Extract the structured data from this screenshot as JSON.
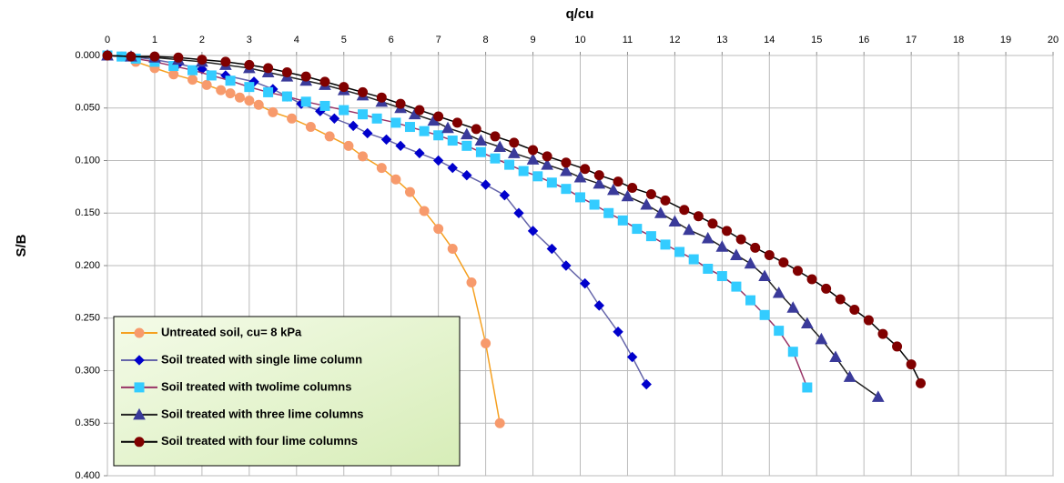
{
  "chart_data": {
    "type": "line",
    "x_label": "q/cu",
    "y_label": "S/B",
    "xlim": [
      0,
      20
    ],
    "xticks": [
      0,
      1,
      2,
      3,
      4,
      5,
      6,
      7,
      8,
      9,
      10,
      11,
      12,
      13,
      14,
      15,
      16,
      17,
      18,
      19,
      20
    ],
    "ylim": [
      0,
      0.4
    ],
    "y_inverted": true,
    "yticks": [
      {
        "value": 0,
        "label": "0.000"
      },
      {
        "value": 0.05,
        "label": "0.050"
      },
      {
        "value": 0.1,
        "label": "0.100"
      },
      {
        "value": 0.15,
        "label": "0.150"
      },
      {
        "value": 0.2,
        "label": "0.200"
      },
      {
        "value": 0.25,
        "label": "0.250"
      },
      {
        "value": 0.3,
        "label": "0.300"
      },
      {
        "value": 0.35,
        "label": "0.350"
      },
      {
        "value": 0.4,
        "label": "0.400"
      }
    ],
    "grid": true,
    "legend": "lower left",
    "series": [
      {
        "name": "Untreated soil, cu= 8 kPa",
        "color": "#f79a6c",
        "line_color": "#f5a020",
        "marker": "circle",
        "x": [
          0,
          0.3,
          0.6,
          1,
          1.4,
          1.8,
          2.1,
          2.4,
          2.6,
          2.8,
          3,
          3.2,
          3.5,
          3.9,
          4.3,
          4.7,
          5.1,
          5.4,
          5.8,
          6.1,
          6.4,
          6.7,
          7,
          7.3,
          7.7,
          8,
          8.3
        ],
        "values": [
          0,
          0.001,
          0.006,
          0.012,
          0.018,
          0.023,
          0.028,
          0.033,
          0.036,
          0.04,
          0.043,
          0.047,
          0.054,
          0.06,
          0.068,
          0.077,
          0.086,
          0.096,
          0.107,
          0.118,
          0.13,
          0.148,
          0.165,
          0.184,
          0.216,
          0.274,
          0.35
        ]
      },
      {
        "name": "Soil treated with single lime column",
        "color": "#0000cc",
        "line_color": "#6666aa",
        "marker": "diamond",
        "x": [
          0,
          0.5,
          1,
          1.5,
          2,
          2.5,
          3.1,
          3.5,
          3.8,
          4.1,
          4.5,
          4.8,
          5.2,
          5.5,
          5.9,
          6.2,
          6.6,
          7,
          7.3,
          7.6,
          8,
          8.4,
          8.7,
          9,
          9.4,
          9.7,
          10.1,
          10.4,
          10.8,
          11.1,
          11.4
        ],
        "values": [
          0,
          0.001,
          0.004,
          0.008,
          0.013,
          0.019,
          0.025,
          0.032,
          0.039,
          0.046,
          0.053,
          0.06,
          0.067,
          0.074,
          0.08,
          0.086,
          0.093,
          0.1,
          0.107,
          0.114,
          0.123,
          0.133,
          0.15,
          0.167,
          0.184,
          0.2,
          0.217,
          0.238,
          0.263,
          0.287,
          0.313
        ]
      },
      {
        "name": "Soil treated with twolime columns",
        "color": "#33ccff",
        "line_color": "#993366",
        "marker": "square",
        "x": [
          0,
          0.3,
          0.6,
          1,
          1.4,
          1.8,
          2.2,
          2.6,
          3,
          3.4,
          3.8,
          4.2,
          4.6,
          5,
          5.4,
          5.7,
          6.1,
          6.4,
          6.7,
          7,
          7.3,
          7.6,
          7.9,
          8.2,
          8.5,
          8.8,
          9.1,
          9.4,
          9.7,
          10,
          10.3,
          10.6,
          10.9,
          11.2,
          11.5,
          11.8,
          12.1,
          12.4,
          12.7,
          13,
          13.3,
          13.6,
          13.9,
          14.2,
          14.5,
          14.8
        ],
        "values": [
          0,
          0.001,
          0.003,
          0.006,
          0.01,
          0.014,
          0.019,
          0.024,
          0.03,
          0.035,
          0.039,
          0.044,
          0.048,
          0.052,
          0.056,
          0.06,
          0.064,
          0.068,
          0.072,
          0.076,
          0.081,
          0.086,
          0.092,
          0.098,
          0.104,
          0.11,
          0.115,
          0.121,
          0.127,
          0.135,
          0.142,
          0.15,
          0.157,
          0.165,
          0.172,
          0.18,
          0.187,
          0.194,
          0.203,
          0.21,
          0.22,
          0.233,
          0.247,
          0.262,
          0.282,
          0.316
        ]
      },
      {
        "name": "Soil treated with three lime columns",
        "color": "#3a3a9a",
        "line_color": "#222222",
        "marker": "triangle",
        "x": [
          0,
          0.5,
          1,
          1.5,
          2,
          2.5,
          3,
          3.4,
          3.8,
          4.2,
          4.6,
          5,
          5.4,
          5.8,
          6.2,
          6.5,
          6.9,
          7.2,
          7.6,
          7.9,
          8.3,
          8.6,
          9,
          9.3,
          9.7,
          10,
          10.4,
          10.7,
          11,
          11.4,
          11.7,
          12,
          12.3,
          12.7,
          13,
          13.3,
          13.6,
          13.9,
          14.2,
          14.5,
          14.8,
          15.1,
          15.4,
          15.7,
          16.3
        ],
        "values": [
          0,
          0.001,
          0.002,
          0.004,
          0.006,
          0.009,
          0.012,
          0.016,
          0.02,
          0.024,
          0.028,
          0.033,
          0.038,
          0.044,
          0.05,
          0.056,
          0.062,
          0.069,
          0.075,
          0.081,
          0.087,
          0.093,
          0.099,
          0.104,
          0.11,
          0.116,
          0.122,
          0.128,
          0.134,
          0.142,
          0.15,
          0.158,
          0.166,
          0.174,
          0.182,
          0.19,
          0.198,
          0.21,
          0.226,
          0.24,
          0.255,
          0.27,
          0.287,
          0.306,
          0.325
        ]
      },
      {
        "name": "Soil treated with four lime columns",
        "color": "#800000",
        "line_color": "#000000",
        "marker": "circle",
        "x": [
          0,
          0.5,
          1,
          1.5,
          2,
          2.5,
          3,
          3.4,
          3.8,
          4.2,
          4.6,
          5,
          5.4,
          5.8,
          6.2,
          6.6,
          7,
          7.4,
          7.8,
          8.2,
          8.6,
          9,
          9.3,
          9.7,
          10.1,
          10.4,
          10.8,
          11.1,
          11.5,
          11.8,
          12.2,
          12.5,
          12.8,
          13.1,
          13.4,
          13.7,
          14,
          14.3,
          14.6,
          14.9,
          15.2,
          15.5,
          15.8,
          16.1,
          16.4,
          16.7,
          17,
          17.2
        ],
        "values": [
          0,
          0.001,
          0.001,
          0.002,
          0.004,
          0.006,
          0.009,
          0.012,
          0.016,
          0.02,
          0.025,
          0.03,
          0.035,
          0.04,
          0.046,
          0.052,
          0.058,
          0.064,
          0.07,
          0.077,
          0.083,
          0.09,
          0.096,
          0.102,
          0.108,
          0.114,
          0.12,
          0.126,
          0.132,
          0.138,
          0.147,
          0.153,
          0.16,
          0.167,
          0.175,
          0.183,
          0.19,
          0.197,
          0.205,
          0.213,
          0.222,
          0.232,
          0.242,
          0.252,
          0.265,
          0.277,
          0.294,
          0.312
        ]
      }
    ]
  }
}
